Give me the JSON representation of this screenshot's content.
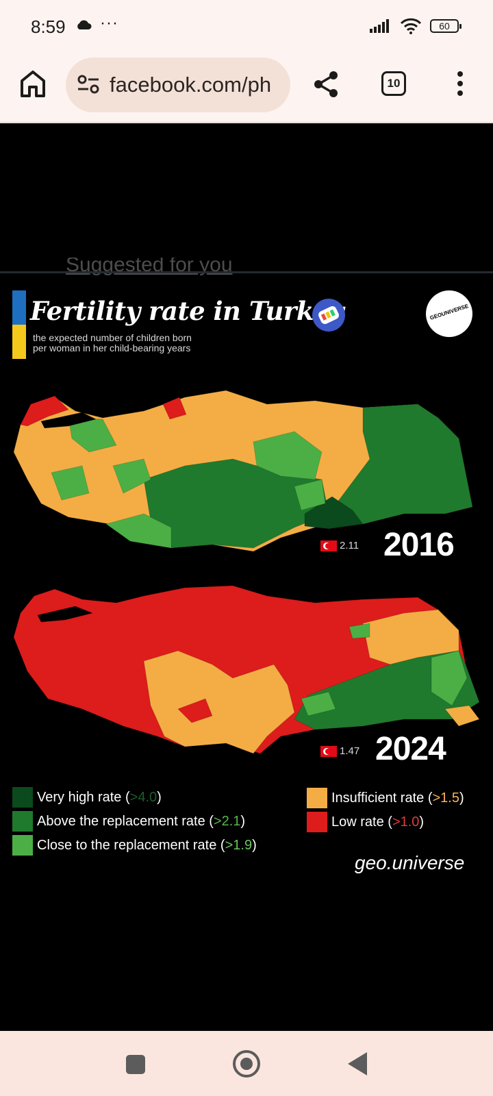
{
  "status_bar": {
    "time": "8:59",
    "more": "···",
    "battery": "60",
    "icons": [
      "cloud-icon",
      "signal-icon",
      "wifi-icon",
      "battery-icon"
    ]
  },
  "browser": {
    "url": "facebook.com/ph",
    "tab_count": "10",
    "icons": [
      "home-icon",
      "site-settings-icon",
      "share-icon",
      "tabs-icon",
      "more-menu-icon"
    ]
  },
  "feed": {
    "suggested_label": "Suggested for you"
  },
  "post": {
    "title": "Fertility rate in Turkey",
    "subtitle_line1": "the expected number of children born",
    "subtitle_line2": "per woman in her child-bearing years",
    "logo_text": "GEOUNIVERSE",
    "watermark": "geo.universe",
    "colors": {
      "very_high": "#0b4a1d",
      "above_replacement": "#1f7a2e",
      "close_replacement": "#4caf45",
      "insufficient": "#f4ad45",
      "low": "#dd1c1c",
      "flag_blue": "#1e6fc0",
      "flag_yellow": "#f5c81c"
    },
    "maps": [
      {
        "year": "2016",
        "national_rate": "2.11"
      },
      {
        "year": "2024",
        "national_rate": "1.47"
      }
    ],
    "legend": [
      {
        "label": "Very high rate",
        "threshold": ">4.0",
        "color": "#0b4a1d",
        "threshold_color": "#1b5e2a"
      },
      {
        "label": "Above the replacement rate",
        "threshold": ">2.1",
        "color": "#1f7a2e",
        "threshold_color": "#5ab54f"
      },
      {
        "label": "Close to the replacement rate",
        "threshold": ">1.9",
        "color": "#4caf45",
        "threshold_color": "#6cc65c"
      },
      {
        "label": "Insufficient rate",
        "threshold": ">1.5",
        "color": "#f4ad45",
        "threshold_color": "#f7b35a"
      },
      {
        "label": "Low rate",
        "threshold": ">1.0",
        "color": "#dd1c1c",
        "threshold_color": "#e33a3a"
      }
    ]
  },
  "nav": {
    "icons": [
      "recents-icon",
      "home-circle-icon",
      "back-icon"
    ]
  }
}
